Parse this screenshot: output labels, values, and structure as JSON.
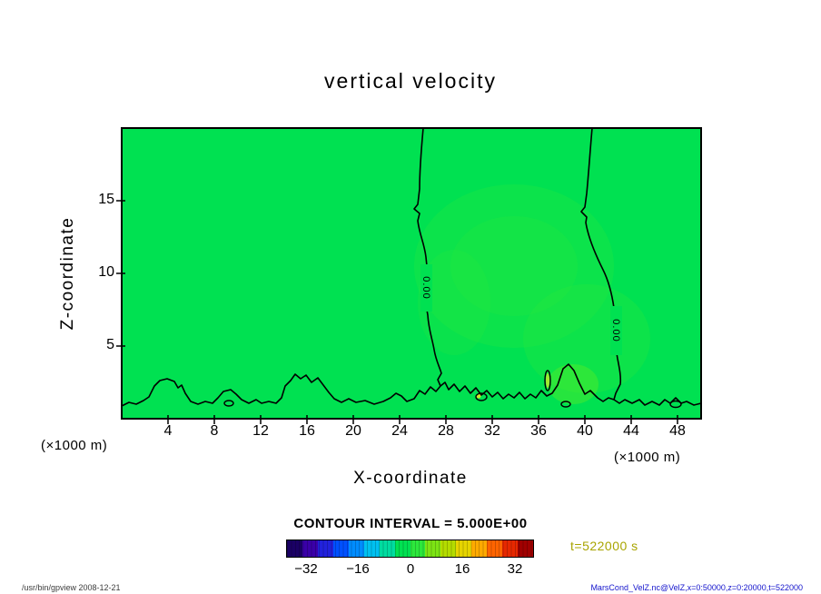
{
  "title": "vertical velocity",
  "plot": {
    "x_axis": {
      "label": "X-coordinate",
      "units": "(×1000 m)",
      "ticks": [
        "4",
        "8",
        "12",
        "16",
        "20",
        "24",
        "28",
        "32",
        "36",
        "40",
        "44",
        "48"
      ]
    },
    "y_axis": {
      "label": "Z-coordinate",
      "units": "(×1000 m)",
      "ticks": [
        "5",
        "10",
        "15"
      ]
    },
    "contour_labels": [
      "0.00",
      "0.00"
    ]
  },
  "legend": {
    "contour_interval_text": "CONTOUR INTERVAL = 5.000E+00",
    "colorbar_ticks": [
      "−32",
      "−16",
      "0",
      "16",
      "32"
    ],
    "colorbar_colors": [
      "#1a0064",
      "#3a00a8",
      "#2222dc",
      "#0050ff",
      "#008cff",
      "#00c0f0",
      "#00dca0",
      "#00e151",
      "#2ce83c",
      "#7ce414",
      "#b4dc00",
      "#e6d400",
      "#ffaa00",
      "#ff6400",
      "#e62800",
      "#a00000"
    ],
    "time_label": "t=522000 s"
  },
  "footer": {
    "left": "/usr/bin/gpview  2008-12-21",
    "right": "MarsCond_VelZ.nc@VelZ,x=0:50000,z=0:20000,t=522000"
  },
  "chart_data": {
    "type": "heatmap",
    "title": "vertical velocity",
    "xlabel": "X-coordinate (×1000 m)",
    "ylabel": "Z-coordinate (×1000 m)",
    "xlim": [
      0,
      50
    ],
    "ylim": [
      0,
      20
    ],
    "x_ticks": [
      4,
      8,
      12,
      16,
      20,
      24,
      28,
      32,
      36,
      40,
      44,
      48
    ],
    "y_ticks": [
      5,
      10,
      15
    ],
    "contour_interval": 5.0,
    "contour_levels_shown": [
      0.0
    ],
    "field_fill_color": "#00e151",
    "colorbar": {
      "orientation": "horizontal",
      "ticks": [
        -32,
        -16,
        0,
        16,
        32
      ],
      "approx_range": [
        -38,
        38
      ]
    },
    "time": "t=522000 s",
    "description": "Filled contour plot of vertical velocity; field is mostly within one contour band of 0 (uniform green). Zero contour lines run vertically near x=26 and x=41 (×1000 m) from the top down, and a wavy zero contour with small closed cells follows the lower boundary (z below ~3)."
  }
}
